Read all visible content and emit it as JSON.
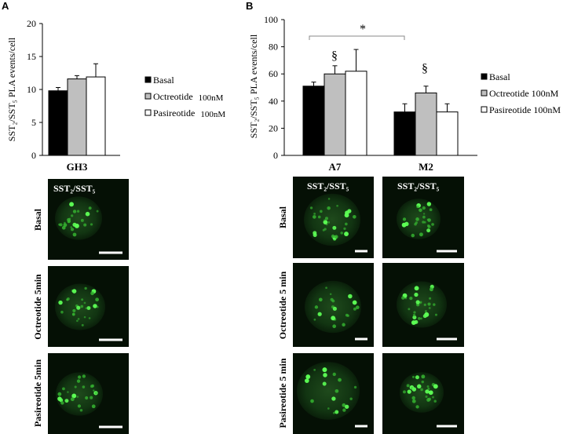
{
  "panels": {
    "A": {
      "letter": "A"
    },
    "B": {
      "letter": "B"
    }
  },
  "chart_data": [
    {
      "type": "bar",
      "panel": "A",
      "ylabel": "SST₂/SST₅ PLA events/cell",
      "categories": [
        "GH3"
      ],
      "ylim": [
        0,
        20
      ],
      "yticks": [
        "0",
        "5",
        "10",
        "15",
        "20"
      ],
      "series": [
        {
          "name": "Basal",
          "values": [
            9.8
          ],
          "errors": [
            0.5
          ],
          "color": "#000000"
        },
        {
          "name": "Octreotide",
          "values": [
            11.6
          ],
          "errors": [
            0.5
          ],
          "color": "#bfbfbf"
        },
        {
          "name": "Pasireotide",
          "values": [
            11.9
          ],
          "errors": [
            2.0
          ],
          "color": "#ffffff"
        }
      ],
      "legend": {
        "placement": "right",
        "entries": [
          {
            "label": "Basal",
            "suffix": ""
          },
          {
            "label": "Octreotide",
            "suffix": "100nM"
          },
          {
            "label": "Pasireotide",
            "suffix": "100nM"
          }
        ]
      },
      "grid": false
    },
    {
      "type": "bar",
      "panel": "B",
      "ylabel": "SST₂/SST₅ PLA events/cell",
      "categories": [
        "A7",
        "M2"
      ],
      "ylim": [
        0,
        100
      ],
      "yticks": [
        "0",
        "20",
        "40",
        "60",
        "80",
        "100"
      ],
      "series": [
        {
          "name": "Basal",
          "values": [
            51,
            32
          ],
          "errors": [
            3,
            6
          ],
          "color": "#000000"
        },
        {
          "name": "Octreotide",
          "values": [
            60,
            46
          ],
          "errors": [
            6,
            5
          ],
          "color": "#bfbfbf"
        },
        {
          "name": "Pasireotide",
          "values": [
            62,
            32
          ],
          "errors": [
            16,
            6
          ],
          "color": "#ffffff"
        }
      ],
      "annotations": {
        "star": "*",
        "section": "§"
      },
      "legend": {
        "placement": "right",
        "entries": [
          {
            "label": "Basal",
            "suffix": ""
          },
          {
            "label": "Octreotide 100nM",
            "suffix": ""
          },
          {
            "label": "Pasireotide 100nM",
            "suffix": ""
          }
        ]
      },
      "grid": false
    }
  ],
  "micrographs": {
    "A": {
      "title": "SST₂/SST₅",
      "rows": [
        "Basal",
        "Octreotide 5min",
        "Pasireotide 5min"
      ]
    },
    "B": {
      "titles": [
        "SST₂/SST₅",
        "SST₂/SST₅"
      ],
      "rows": [
        "Basal",
        "Octreotide 5 min",
        "Pasireotide 5 min"
      ]
    }
  }
}
